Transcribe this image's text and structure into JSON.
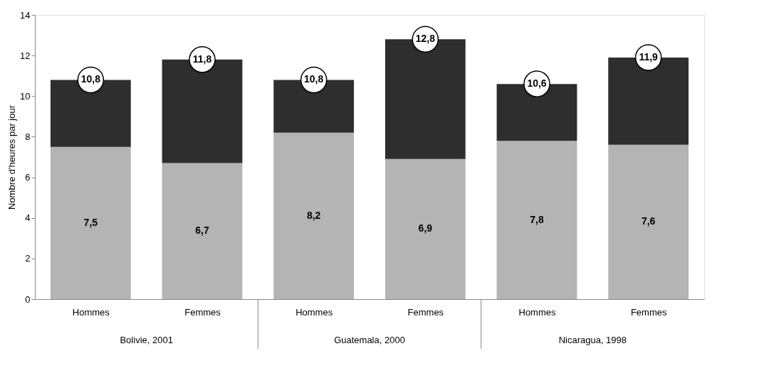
{
  "chart_data": {
    "type": "bar",
    "stacked": true,
    "ylabel": "Nombre d'heures par jour",
    "categories": [
      "Hommes",
      "Femmes",
      "Hommes",
      "Femmes",
      "Hommes",
      "Femmes"
    ],
    "series": [
      {
        "color": "#b4b4b4",
        "values": [
          7.5,
          6.7,
          8.2,
          6.9,
          7.8,
          7.6
        ],
        "value_labels": [
          "7,5",
          "6,7",
          "8,2",
          "6,9",
          "7,8",
          "7,6"
        ]
      },
      {
        "color": "#2e2e2e",
        "values": [
          3.3,
          5.1,
          2.6,
          5.9,
          2.8,
          4.3
        ]
      }
    ],
    "totals": [
      "10,8",
      "11,8",
      "10,8",
      "12,8",
      "10,6",
      "11,9"
    ],
    "annotations": [
      "Bolivie, 2001",
      "Guatemala, 2000",
      "Nicaragua, 1998"
    ],
    "ylim": [
      0,
      14
    ],
    "yticks": [
      0,
      2,
      4,
      6,
      8,
      10,
      12,
      14
    ],
    "grid": false
  }
}
